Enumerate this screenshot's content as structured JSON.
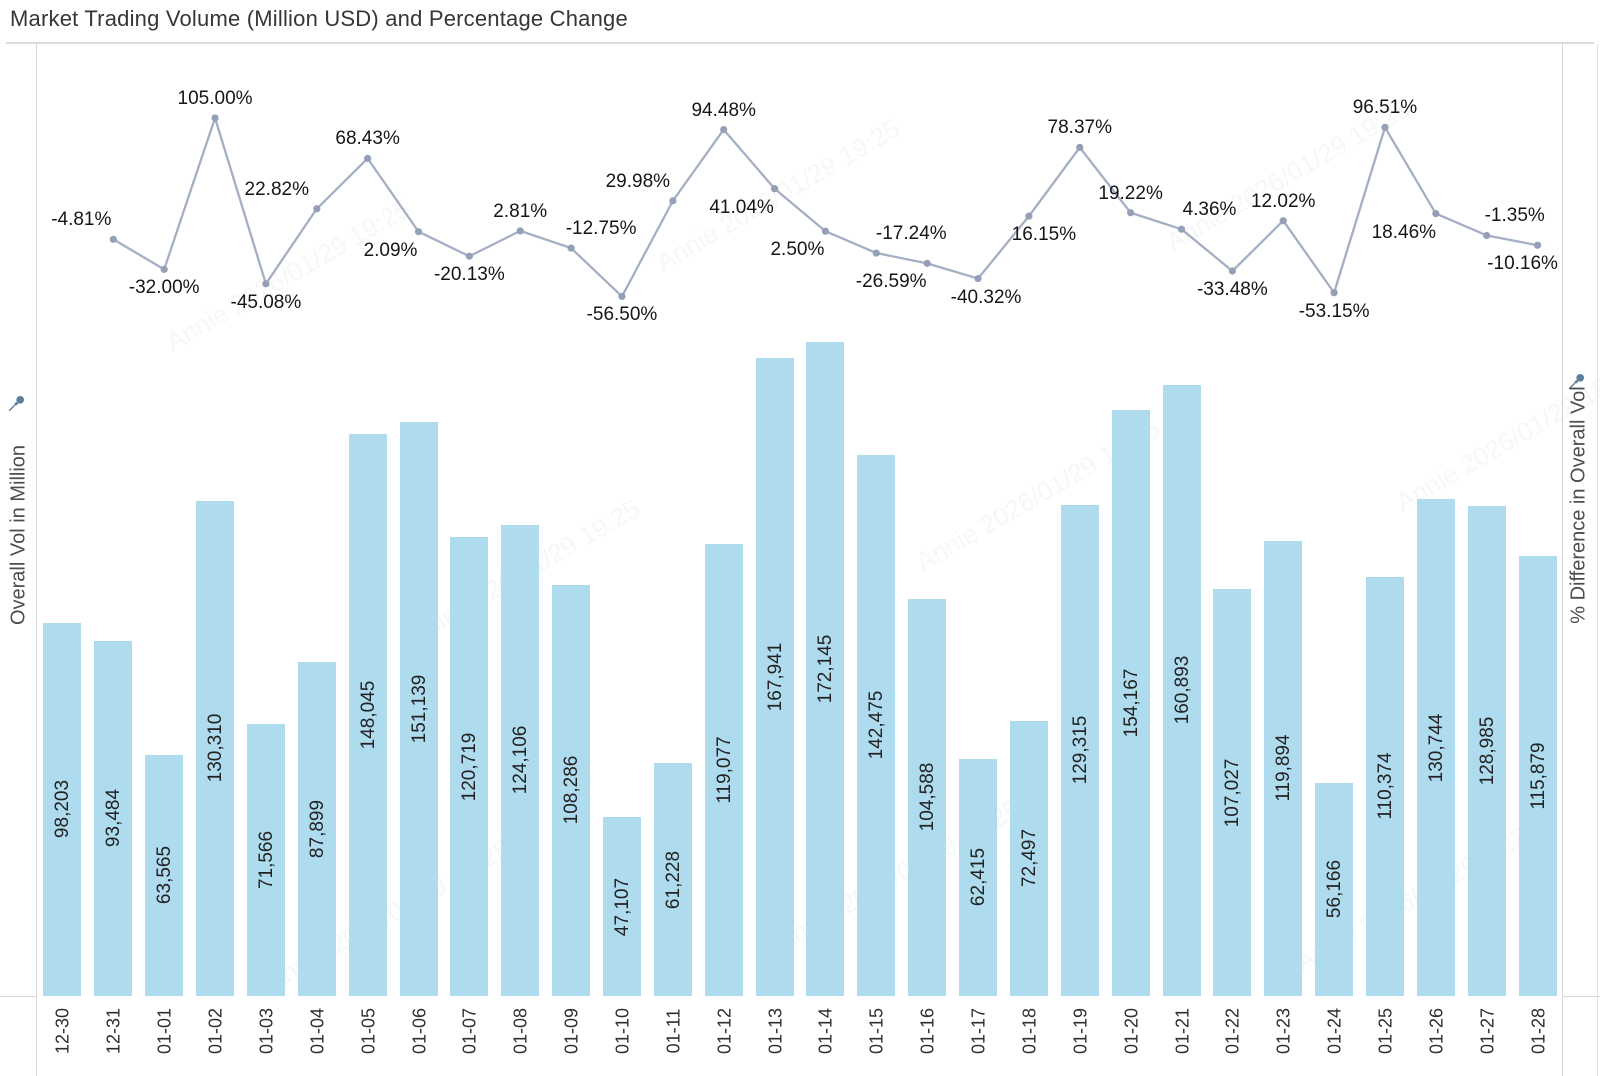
{
  "title": "Market Trading Volume (Million USD) and Percentage Change",
  "left_axis": {
    "label": "Overall Vol in Million",
    "icon": "pushpin"
  },
  "right_axis": {
    "label": "% Difference in Overall Vol",
    "icon": "pushpin"
  },
  "watermark_text": "Annie 2026/01/29 19:25",
  "colors": {
    "bar": "#afdbef",
    "line": "#a5afc3",
    "marker": "#93a0b5",
    "border": "#dcdcdc",
    "label_text": "#1a1a1a"
  },
  "chart_data": {
    "type": "combo",
    "title": "Market Trading Volume (Million USD) and Percentage Change",
    "categories": [
      "12-30",
      "12-31",
      "01-01",
      "01-02",
      "01-03",
      "01-04",
      "01-05",
      "01-06",
      "01-07",
      "01-08",
      "01-09",
      "01-10",
      "01-11",
      "01-12",
      "01-13",
      "01-14",
      "01-15",
      "01-16",
      "01-17",
      "01-18",
      "01-19",
      "01-20",
      "01-21",
      "01-22",
      "01-23",
      "01-24",
      "01-25",
      "01-26",
      "01-27",
      "01-28"
    ],
    "grid": false,
    "legend": "none",
    "axes_numeric_ticks_hidden": true,
    "ylabel_left": "Overall Vol in Million",
    "ylabel_right": "% Difference in Overall Vol",
    "series": [
      {
        "name": "Overall Vol in Million",
        "type": "bar",
        "values": [
          98203,
          93484,
          63565,
          130310,
          71566,
          87899,
          148045,
          151139,
          120719,
          124106,
          108286,
          47107,
          61228,
          119077,
          167941,
          172145,
          142475,
          104588,
          62415,
          72497,
          129315,
          154167,
          160893,
          107027,
          119894,
          56166,
          110374,
          130744,
          128985,
          115879
        ],
        "labels": [
          "98,203",
          "93,484",
          "63,565",
          "130,310",
          "71,566",
          "87,899",
          "148,045",
          "151,139",
          "120,719",
          "124,106",
          "108,286",
          "47,107",
          "61,228",
          "119,077",
          "167,941",
          "172,145",
          "142,475",
          "104,588",
          "62,415",
          "72,497",
          "129,315",
          "154,167",
          "160,893",
          "107,027",
          "119,894",
          "56,166",
          "110,374",
          "130,744",
          "128,985",
          "115,879"
        ]
      },
      {
        "name": "% Difference in Overall Vol",
        "type": "line",
        "start_category_index": 1,
        "values": [
          -4.81,
          -32.0,
          105.0,
          -45.08,
          22.82,
          68.43,
          2.09,
          -20.13,
          2.81,
          -12.75,
          -56.5,
          29.98,
          94.48,
          41.04,
          2.5,
          -17.24,
          -26.59,
          -40.32,
          16.15,
          78.37,
          19.22,
          4.36,
          -33.48,
          12.02,
          -53.15,
          96.51,
          18.46,
          -1.35,
          -10.16
        ],
        "labels": [
          "-4.81%",
          "-32.00%",
          "105.00%",
          "-45.08%",
          "22.82%",
          "68.43%",
          "2.09%",
          "-20.13%",
          "2.81%",
          "-12.75%",
          "-56.50%",
          "29.98%",
          "94.48%",
          "41.04%",
          "2.50%",
          "-17.24%",
          "-26.59%",
          "-40.32%",
          "16.15%",
          "78.37%",
          "19.22%",
          "4.36%",
          "-33.48%",
          "12.02%",
          "-53.15%",
          "96.51%",
          "18.46%",
          "-1.35%",
          "-10.16%"
        ],
        "label_placement": [
          {
            "side": "above",
            "dx": -32
          },
          {
            "side": "below",
            "dx": 0
          },
          {
            "side": "above",
            "dx": 0
          },
          {
            "side": "below",
            "dx": 0
          },
          {
            "side": "above",
            "dx": -40
          },
          {
            "side": "above",
            "dx": 0
          },
          {
            "side": "below",
            "dx": -28
          },
          {
            "side": "below",
            "dx": 0
          },
          {
            "side": "above",
            "dx": 0
          },
          {
            "side": "above",
            "dx": 30
          },
          {
            "side": "below",
            "dx": 0
          },
          {
            "side": "above",
            "dx": -35
          },
          {
            "side": "above",
            "dx": 0
          },
          {
            "side": "below",
            "dx": -33
          },
          {
            "side": "below",
            "dx": -28
          },
          {
            "side": "above",
            "dx": 35
          },
          {
            "side": "below",
            "dx": -36
          },
          {
            "side": "below",
            "dx": 8
          },
          {
            "side": "below",
            "dx": 15
          },
          {
            "side": "above",
            "dx": 0
          },
          {
            "side": "above",
            "dx": 0
          },
          {
            "side": "above",
            "dx": 28
          },
          {
            "side": "below",
            "dx": 0
          },
          {
            "side": "above",
            "dx": 0
          },
          {
            "side": "below",
            "dx": 0
          },
          {
            "side": "above",
            "dx": 0
          },
          {
            "side": "below",
            "dx": -32
          },
          {
            "side": "above",
            "dx": 28
          },
          {
            "side": "below",
            "dx": -15
          }
        ]
      }
    ]
  }
}
